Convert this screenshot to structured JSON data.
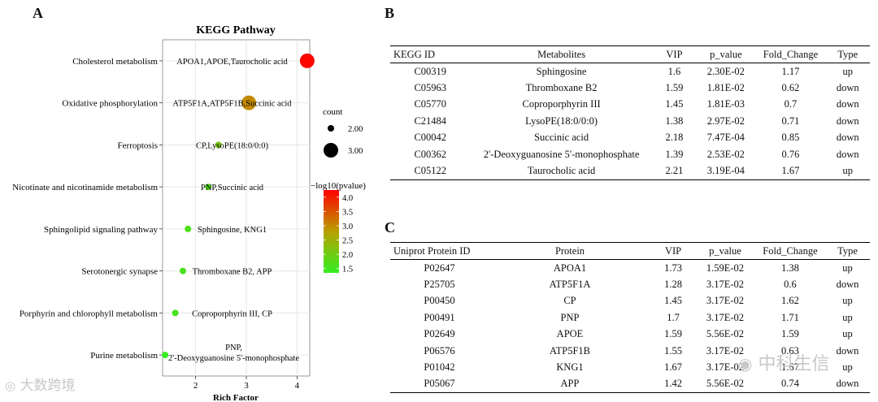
{
  "panels": {
    "a": "A",
    "b": "B",
    "c": "C"
  },
  "chart_data": {
    "type": "scatter",
    "title": "KEGG Pathway",
    "xlabel": "Rich Factor",
    "ylabel": "",
    "xlim": [
      1.35,
      4.25
    ],
    "xticks": [
      2,
      3,
      4
    ],
    "grid": true,
    "legend_position": "right",
    "categories": [
      "Cholesterol metabolism",
      "Oxidative phosphorylation",
      "Ferroptosis",
      "Nicotinate and nicotinamide metabolism",
      "Sphingolipid signaling pathway",
      "Serotonergic synapse",
      "Porphyrin and chlorophyll metabolism",
      "Purine metabolism"
    ],
    "points": [
      {
        "pathway": "Cholesterol metabolism",
        "rich_factor": 4.2,
        "count": 3,
        "neg_log10_p": 4.2,
        "label": "APOA1,APOE,Taurocholic acid"
      },
      {
        "pathway": "Oxidative phosphorylation",
        "rich_factor": 3.05,
        "count": 3,
        "neg_log10_p": 3.0,
        "label": "ATP5F1A,ATP5F1B,Succinic acid"
      },
      {
        "pathway": "Ferroptosis",
        "rich_factor": 2.45,
        "count": 2,
        "neg_log10_p": 2.1,
        "label": "CP,LysoPE(18:0/0:0)"
      },
      {
        "pathway": "Nicotinate and nicotinamide metabolism",
        "rich_factor": 2.25,
        "count": 2,
        "neg_log10_p": 1.7,
        "label": "PNP,Succinic acid"
      },
      {
        "pathway": "Sphingolipid signaling pathway",
        "rich_factor": 1.85,
        "count": 2,
        "neg_log10_p": 1.6,
        "label": "Sphingosine, KNG1"
      },
      {
        "pathway": "Serotonergic synapse",
        "rich_factor": 1.75,
        "count": 2,
        "neg_log10_p": 1.6,
        "label": "Thromboxane B2, APP"
      },
      {
        "pathway": "Porphyrin and chlorophyll metabolism",
        "rich_factor": 1.6,
        "count": 2,
        "neg_log10_p": 1.55,
        "label": "Coproporphyrin III, CP"
      },
      {
        "pathway": "Purine metabolism",
        "rich_factor": 1.4,
        "count": 2,
        "neg_log10_p": 1.4,
        "label_lines": [
          "PNP,",
          "2'-Deoxyguanosine 5'-monophosphate"
        ]
      }
    ],
    "size_legend": {
      "title": "count",
      "values": [
        2.0,
        3.0
      ],
      "labels": [
        "2.00",
        "3.00"
      ]
    },
    "color_legend": {
      "title": "−log10(pvalue)",
      "min": 1.35,
      "max": 4.25,
      "ticks": [
        1.5,
        2.0,
        2.5,
        3.0,
        3.5,
        4.0
      ],
      "tick_labels": [
        "1.5",
        "2.0",
        "2.5",
        "3.0",
        "3.5",
        "4.0"
      ],
      "low_color": "#33ee22",
      "mid_color": "#b8a000",
      "high_color": "#ff0000"
    }
  },
  "table_b": {
    "headers": [
      "KEGG ID",
      "Metabolites",
      "VIP",
      "p_value",
      "Fold_Change",
      "Type"
    ],
    "rows": [
      [
        "C00319",
        "Sphingosine",
        "1.6",
        "2.30E-02",
        "1.17",
        "up"
      ],
      [
        "C05963",
        "Thromboxane B2",
        "1.59",
        "1.81E-02",
        "0.62",
        "down"
      ],
      [
        "C05770",
        "Coproporphyrin III",
        "1.45",
        "1.81E-03",
        "0.7",
        "down"
      ],
      [
        "C21484",
        "LysoPE(18:0/0:0)",
        "1.38",
        "2.97E-02",
        "0.71",
        "down"
      ],
      [
        "C00042",
        "Succinic acid",
        "2.18",
        "7.47E-04",
        "0.85",
        "down"
      ],
      [
        "C00362",
        "2'-Deoxyguanosine 5'-monophosphate",
        "1.39",
        "2.53E-02",
        "0.76",
        "down"
      ],
      [
        "C05122",
        "Taurocholic acid",
        "2.21",
        "3.19E-04",
        "1.67",
        "up"
      ]
    ]
  },
  "table_c": {
    "headers": [
      "Uniprot Protein ID",
      "Protein",
      "VIP",
      "p_value",
      "Fold_Change",
      "Type"
    ],
    "rows": [
      [
        "P02647",
        "APOA1",
        "1.73",
        "1.59E-02",
        "1.38",
        "up"
      ],
      [
        "P25705",
        "ATP5F1A",
        "1.28",
        "3.17E-02",
        "0.6",
        "down"
      ],
      [
        "P00450",
        "CP",
        "1.45",
        "3.17E-02",
        "1.62",
        "up"
      ],
      [
        "P00491",
        "PNP",
        "1.7",
        "3.17E-02",
        "1.71",
        "up"
      ],
      [
        "P02649",
        "APOE",
        "1.59",
        "5.56E-02",
        "1.59",
        "up"
      ],
      [
        "P06576",
        "ATP5F1B",
        "1.55",
        "3.17E-02",
        "0.63",
        "down"
      ],
      [
        "P01042",
        "KNG1",
        "1.67",
        "3.17E-02",
        "1.67",
        "up"
      ],
      [
        "P05067",
        "APP",
        "1.42",
        "5.56E-02",
        "0.74",
        "down"
      ]
    ]
  },
  "watermarks": {
    "left": "大数跨境",
    "right": "中科生信"
  }
}
